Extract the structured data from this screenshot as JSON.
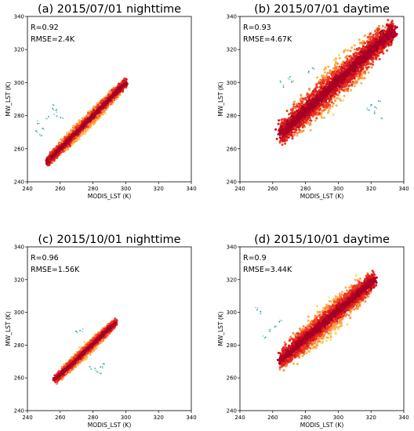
{
  "chart_data": [
    {
      "type": "scatter",
      "title": "(a) 2015/07/01 nighttime",
      "xlabel": "MODIS_LST (K)",
      "ylabel": "MW_LST (K)",
      "xlim": [
        240,
        340
      ],
      "ylim": [
        240,
        340
      ],
      "xticks": [
        "240",
        "260",
        "280",
        "300",
        "320",
        "340"
      ],
      "yticks": [
        "240",
        "260",
        "280",
        "300",
        "320",
        "340"
      ],
      "annotations": [
        "R=0.92",
        "RMSE=2.4K"
      ],
      "density_core": {
        "x": [
          252,
          300
        ],
        "y": [
          252,
          300
        ]
      },
      "spread": 3,
      "outliers": [
        [
          246,
          270
        ],
        [
          247,
          276
        ],
        [
          250,
          272
        ],
        [
          255,
          284
        ],
        [
          256,
          286
        ],
        [
          252,
          279
        ],
        [
          258,
          283
        ],
        [
          248,
          268
        ],
        [
          257,
          280
        ],
        [
          261,
          279
        ]
      ]
    },
    {
      "type": "scatter",
      "title": "(b) 2015/07/01 daytime",
      "xlabel": "MODIS_LST (K)",
      "ylabel": "MW_LST (K)",
      "xlim": [
        240,
        340
      ],
      "ylim": [
        240,
        340
      ],
      "xticks": [
        "240",
        "260",
        "280",
        "300",
        "320",
        "340"
      ],
      "yticks": [
        "240",
        "260",
        "280",
        "300",
        "320",
        "340"
      ],
      "annotations": [
        "R=0.93",
        "RMSE=4.67K"
      ],
      "density_core": {
        "x": [
          265,
          334
        ],
        "y": [
          269,
          332
        ]
      },
      "spread": 8,
      "outliers": [
        [
          264,
          300
        ],
        [
          266,
          298
        ],
        [
          270,
          303
        ],
        [
          272,
          301
        ],
        [
          282,
          306
        ],
        [
          285,
          309
        ],
        [
          318,
          284
        ],
        [
          320,
          286
        ],
        [
          322,
          282
        ],
        [
          323,
          285
        ],
        [
          325,
          288
        ],
        [
          326,
          279
        ]
      ]
    },
    {
      "type": "scatter",
      "title": "(c) 2015/10/01 nighttime",
      "xlabel": "MODIS_LST (K)",
      "ylabel": "MW_LST (K)",
      "xlim": [
        240,
        340
      ],
      "ylim": [
        240,
        340
      ],
      "xticks": [
        "240",
        "260",
        "280",
        "300",
        "320",
        "340"
      ],
      "yticks": [
        "240",
        "260",
        "280",
        "300",
        "320",
        "340"
      ],
      "annotations": [
        "R=0.96",
        "RMSE=1.56K"
      ],
      "density_core": {
        "x": [
          257,
          294
        ],
        "y": [
          259,
          294
        ]
      },
      "spread": 2.5,
      "outliers": [
        [
          270,
          288
        ],
        [
          273,
          289
        ],
        [
          281,
          265
        ],
        [
          283,
          264
        ],
        [
          285,
          266
        ],
        [
          284,
          262
        ],
        [
          286,
          268
        ],
        [
          279,
          266
        ]
      ]
    },
    {
      "type": "scatter",
      "title": "(d) 2015/10/01 daytime",
      "xlabel": "MODIS_LST (K)",
      "ylabel": "MW_LST (K)",
      "xlim": [
        240,
        340
      ],
      "ylim": [
        240,
        340
      ],
      "xticks": [
        "240",
        "260",
        "280",
        "300",
        "320",
        "340"
      ],
      "yticks": [
        "240",
        "260",
        "280",
        "300",
        "320",
        "340"
      ],
      "annotations": [
        "R=0.9",
        "RMSE=3.44K"
      ],
      "density_core": {
        "x": [
          265,
          322
        ],
        "y": [
          271,
          320
        ]
      },
      "spread": 6,
      "outliers": [
        [
          250,
          302
        ],
        [
          252,
          300
        ],
        [
          255,
          285
        ],
        [
          258,
          289
        ],
        [
          262,
          292
        ],
        [
          265,
          295
        ]
      ]
    }
  ]
}
